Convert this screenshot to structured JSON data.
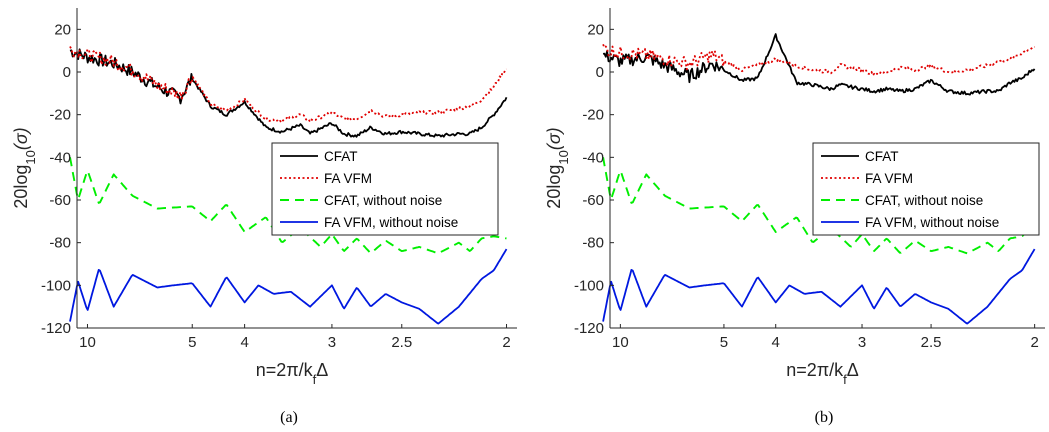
{
  "colors": {
    "CFAT": "#000000",
    "FA VFM": "#e00000",
    "CFAT, without noise": "#00ee00",
    "FA VFM, without noise": "#0018e0"
  },
  "chart_data": [
    {
      "type": "line",
      "caption": "(a)",
      "xlabel": "n=2π/k_fΔ",
      "ylabel": "20log10(σ)",
      "x_scale": "reciprocal",
      "xlim": [
        0.09,
        0.51
      ],
      "ylim": [
        -120,
        30
      ],
      "xticks": [
        10,
        5,
        4,
        3,
        2.5,
        2
      ],
      "yticks": [
        -120,
        -100,
        -80,
        -60,
        -40,
        -20,
        0,
        20
      ],
      "legend": "center-right",
      "series": [
        {
          "name": "CFAT",
          "style": "solid",
          "x": [
            12,
            10,
            8,
            7,
            6,
            5.3,
            5,
            4.6,
            4.3,
            4,
            3.7,
            3.5,
            3.3,
            3.2,
            3,
            2.9,
            2.8,
            2.7,
            2.6,
            2.5,
            2.4,
            2.3,
            2.2,
            2.15,
            2.1,
            2.05,
            2.0
          ],
          "y": [
            10,
            7,
            4,
            0,
            -7,
            -12,
            -3,
            -16,
            -20,
            -14,
            -26,
            -28,
            -25,
            -29,
            -24,
            -29,
            -30,
            -26,
            -29,
            -28,
            -29,
            -30,
            -29,
            -29,
            -26,
            -20,
            -12
          ]
        },
        {
          "name": "FA VFM",
          "style": "dotted",
          "x": [
            12,
            10,
            8,
            7,
            6,
            5.3,
            5,
            4.6,
            4.3,
            4,
            3.7,
            3.5,
            3.3,
            3.2,
            3,
            2.9,
            2.8,
            2.7,
            2.6,
            2.5,
            2.4,
            2.3,
            2.2,
            2.15,
            2.1,
            2.05,
            2.0
          ],
          "y": [
            11,
            8,
            5,
            1,
            -6,
            -11,
            -2,
            -15,
            -18,
            -13,
            -22,
            -23,
            -20,
            -23,
            -19,
            -22,
            -22,
            -18,
            -21,
            -20,
            -19,
            -19,
            -17,
            -16,
            -13,
            -7,
            2
          ]
        },
        {
          "name": "CFAT, without noise",
          "style": "dashed",
          "x": [
            12,
            11,
            10,
            9,
            8,
            7,
            6,
            5,
            4.6,
            4.3,
            4,
            3.7,
            3.5,
            3.3,
            3.1,
            3,
            2.9,
            2.8,
            2.7,
            2.6,
            2.5,
            2.4,
            2.3,
            2.2,
            2.15,
            2.1,
            2.05,
            2.0
          ],
          "y": [
            -40,
            -60,
            -46,
            -62,
            -48,
            -58,
            -64,
            -63,
            -70,
            -62,
            -75,
            -68,
            -80,
            -73,
            -82,
            -76,
            -84,
            -78,
            -85,
            -79,
            -84,
            -82,
            -85,
            -80,
            -84,
            -78,
            -77,
            -78
          ]
        },
        {
          "name": "FA VFM, without noise",
          "style": "solid",
          "x": [
            12,
            11,
            10,
            9,
            8,
            7,
            6,
            5.5,
            5,
            4.6,
            4.3,
            4,
            3.8,
            3.6,
            3.4,
            3.2,
            3,
            2.9,
            2.8,
            2.7,
            2.6,
            2.5,
            2.4,
            2.3,
            2.2,
            2.1,
            2.05,
            2.0
          ],
          "y": [
            -117,
            -98,
            -112,
            -92,
            -110,
            -95,
            -101,
            -100,
            -99,
            -110,
            -96,
            -108,
            -100,
            -104,
            -103,
            -110,
            -100,
            -111,
            -101,
            -110,
            -104,
            -108,
            -111,
            -118,
            -110,
            -97,
            -93,
            -83
          ]
        }
      ]
    },
    {
      "type": "line",
      "caption": "(b)",
      "xlabel": "n=2π/k_fΔ",
      "ylabel": "20log10(σ)",
      "x_scale": "reciprocal",
      "xlim": [
        0.09,
        0.51
      ],
      "ylim": [
        -120,
        30
      ],
      "xticks": [
        10,
        5,
        4,
        3,
        2.5,
        2
      ],
      "yticks": [
        -120,
        -100,
        -80,
        -60,
        -40,
        -20,
        0,
        20
      ],
      "legend": "center-right",
      "series": [
        {
          "name": "CFAT",
          "style": "solid",
          "x": [
            12,
            10,
            8,
            7,
            6,
            5.3,
            5,
            4.6,
            4.3,
            4,
            3.7,
            3.5,
            3.3,
            3.2,
            3,
            2.9,
            2.8,
            2.7,
            2.6,
            2.5,
            2.4,
            2.3,
            2.2,
            2.15,
            2.1,
            2.05,
            2.0
          ],
          "y": [
            8,
            5,
            7,
            3,
            -2,
            4,
            1,
            -4,
            -3,
            17,
            -5,
            -6,
            -8,
            -6,
            -8,
            -9,
            -8,
            -9,
            -8,
            -4,
            -9,
            -10,
            -9,
            -9,
            -5,
            -3,
            2
          ]
        },
        {
          "name": "FA VFM",
          "style": "dotted",
          "x": [
            12,
            10,
            8,
            7,
            6,
            5.3,
            5,
            4.6,
            4.3,
            4,
            3.7,
            3.5,
            3.3,
            3.2,
            3,
            2.9,
            2.8,
            2.7,
            2.6,
            2.5,
            2.4,
            2.3,
            2.2,
            2.15,
            2.1,
            2.05,
            2.0
          ],
          "y": [
            11,
            9,
            8,
            6,
            4,
            8,
            5,
            1,
            3,
            6,
            3,
            1,
            0,
            3,
            1,
            -1,
            0,
            2,
            1,
            3,
            0,
            1,
            3,
            5,
            6,
            9,
            12
          ]
        },
        {
          "name": "CFAT, without noise",
          "style": "dashed",
          "x": [
            12,
            11,
            10,
            9,
            8,
            7,
            6,
            5,
            4.6,
            4.3,
            4,
            3.7,
            3.5,
            3.3,
            3.1,
            3,
            2.9,
            2.8,
            2.7,
            2.6,
            2.5,
            2.4,
            2.3,
            2.2,
            2.15,
            2.1,
            2.05,
            2.0
          ],
          "y": [
            -40,
            -60,
            -46,
            -62,
            -48,
            -58,
            -64,
            -63,
            -70,
            -62,
            -75,
            -68,
            -80,
            -73,
            -82,
            -76,
            -84,
            -78,
            -85,
            -79,
            -84,
            -82,
            -85,
            -80,
            -84,
            -78,
            -77,
            -72
          ]
        },
        {
          "name": "FA VFM, without noise",
          "style": "solid",
          "x": [
            12,
            11,
            10,
            9,
            8,
            7,
            6,
            5.5,
            5,
            4.6,
            4.3,
            4,
            3.8,
            3.6,
            3.4,
            3.2,
            3,
            2.9,
            2.8,
            2.7,
            2.6,
            2.5,
            2.4,
            2.3,
            2.2,
            2.1,
            2.05,
            2.0
          ],
          "y": [
            -117,
            -98,
            -112,
            -92,
            -110,
            -95,
            -101,
            -100,
            -99,
            -110,
            -96,
            -108,
            -100,
            -104,
            -103,
            -110,
            -100,
            -111,
            -101,
            -110,
            -104,
            -108,
            -111,
            -118,
            -110,
            -97,
            -93,
            -83
          ]
        }
      ]
    }
  ]
}
